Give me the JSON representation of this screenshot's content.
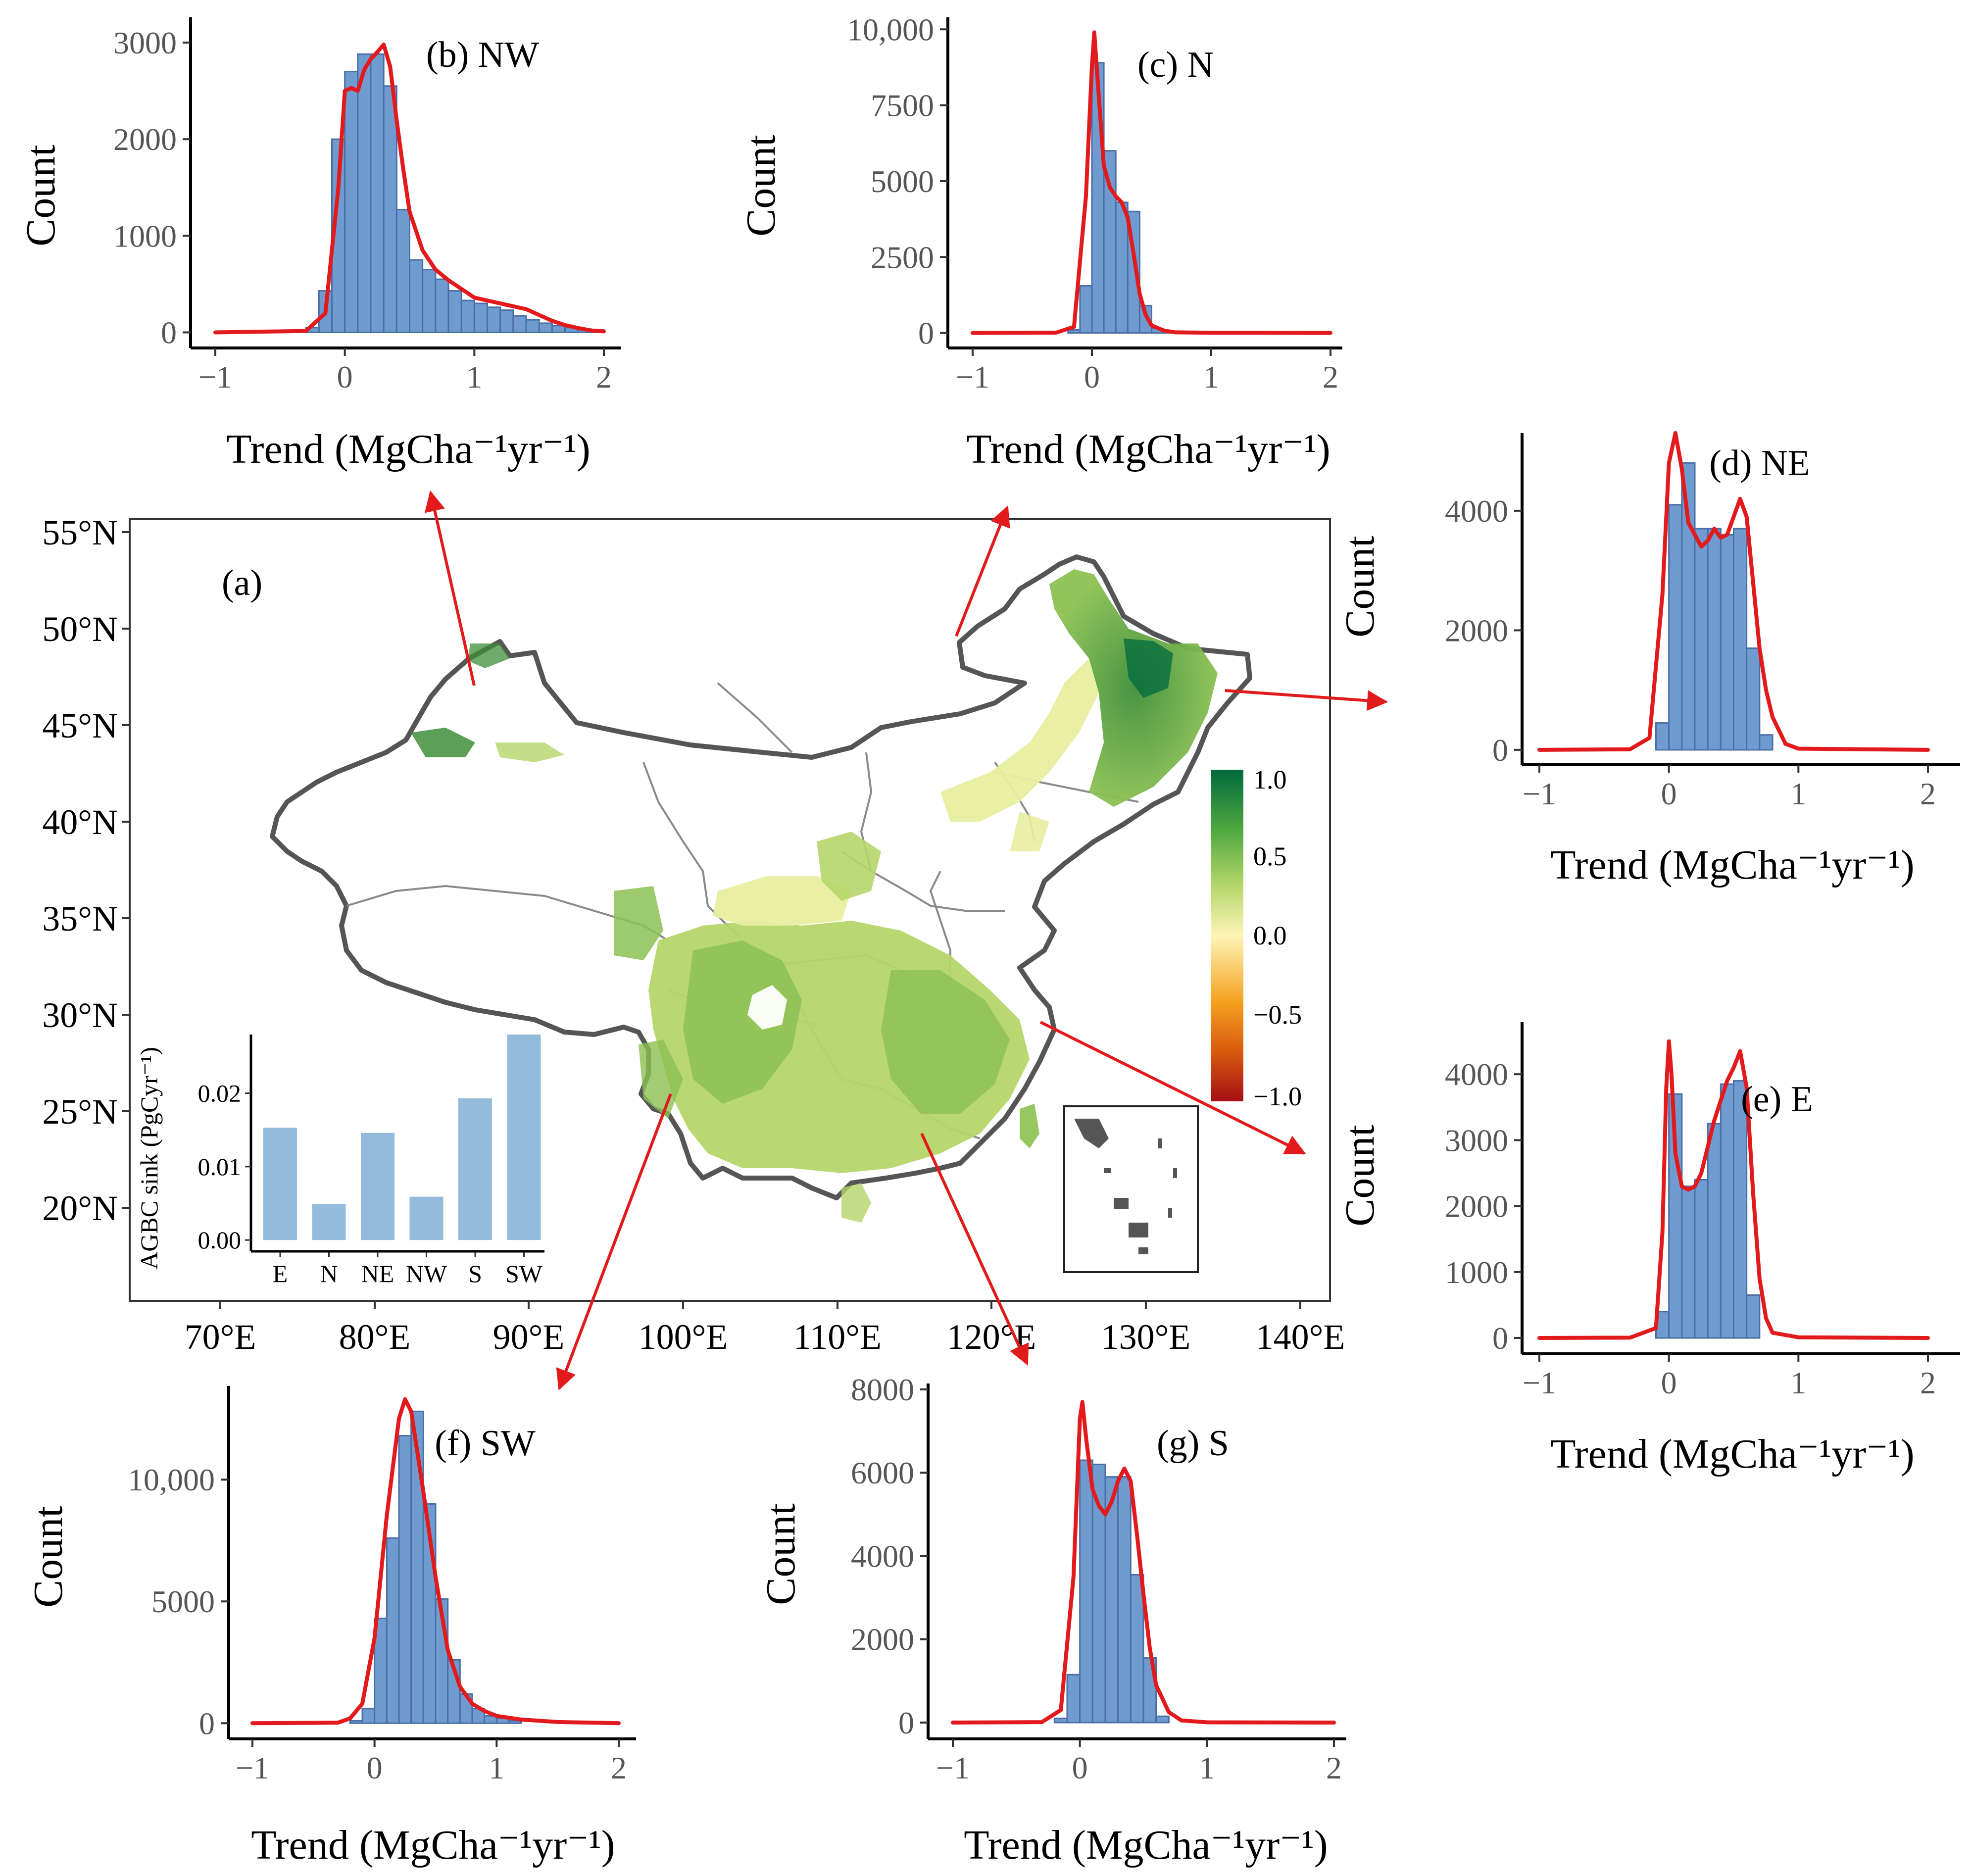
{
  "figure": {
    "common_xlabel": "Trend (MgCha⁻¹yr⁻¹)",
    "common_ylabel": "Count",
    "histogram_color": "#6f9bd1",
    "histogram_edge": "#4a6fa5",
    "density_color": "#e31a1c",
    "arrow_color": "#e31a1c"
  },
  "map": {
    "label": "(a)",
    "lat_ticks": [
      "55°N",
      "50°N",
      "45°N",
      "40°N",
      "35°N",
      "30°N",
      "25°N",
      "20°N"
    ],
    "lon_ticks": [
      "70°E",
      "80°E",
      "90°E",
      "100°E",
      "110°E",
      "120°E",
      "130°E",
      "140°E"
    ],
    "colorbar": {
      "ticks": [
        "1.0",
        "0.5",
        "0.0",
        "−0.5",
        "−1.0"
      ],
      "colors": [
        "#00693c",
        "#4ea83f",
        "#b5d66a",
        "#fdf5b8",
        "#f4a11f",
        "#d85a0e",
        "#a50f15"
      ]
    },
    "land_fill": "#ffffff",
    "vegetation_colors": [
      "#b5d66a",
      "#8cc152",
      "#e8eea0",
      "#3f8f3a"
    ]
  },
  "chart_data": [
    {
      "id": "inset_bar",
      "type": "bar",
      "categories": [
        "E",
        "N",
        "NE",
        "NW",
        "S",
        "SW"
      ],
      "values": [
        0.0153,
        0.0049,
        0.0146,
        0.0059,
        0.0193,
        0.028
      ],
      "ylabel": "AGBC sink (PgCyr⁻¹)",
      "yticks": [
        "0.00",
        "0.01",
        "0.02"
      ],
      "ylim": [
        -0.001,
        0.028
      ],
      "color": "#94bbdc"
    },
    {
      "id": "NW",
      "type": "histogram",
      "title": "(b) NW",
      "xlabel": "Trend (MgCha⁻¹yr⁻¹)",
      "ylabel": "Count",
      "xlim": [
        -1,
        2
      ],
      "ylim": [
        -100,
        3200
      ],
      "xticks": [
        "−1",
        "0",
        "1",
        "2"
      ],
      "xtick_values": [
        -1,
        0,
        1,
        2
      ],
      "yticks": [
        "0",
        "1000",
        "2000",
        "3000"
      ],
      "ytick_values": [
        0,
        1000,
        2000,
        3000
      ],
      "bin_start": -0.3,
      "bin_width": 0.1,
      "counts": [
        50,
        430,
        2000,
        2700,
        2880,
        2880,
        2550,
        1270,
        750,
        650,
        550,
        430,
        330,
        300,
        260,
        230,
        170,
        130,
        95,
        70,
        50,
        35,
        25
      ],
      "density_x": [
        -1,
        -0.3,
        -0.15,
        -0.05,
        0,
        0.05,
        0.1,
        0.15,
        0.2,
        0.25,
        0.3,
        0.35,
        0.4,
        0.45,
        0.5,
        0.6,
        0.7,
        0.8,
        0.9,
        1.0,
        1.1,
        1.2,
        1.3,
        1.4,
        1.5,
        1.6,
        1.7,
        1.8,
        1.9,
        2
      ],
      "density_y": [
        0,
        15,
        200,
        1500,
        2500,
        2530,
        2500,
        2720,
        2830,
        2900,
        2980,
        2750,
        2200,
        1700,
        1250,
        850,
        650,
        540,
        450,
        360,
        330,
        300,
        270,
        240,
        180,
        120,
        75,
        45,
        20,
        10
      ]
    },
    {
      "id": "N",
      "type": "histogram",
      "title": "(c) N",
      "xlabel": "Trend (MgCha⁻¹yr⁻¹)",
      "ylabel": "Count",
      "xlim": [
        -1,
        2
      ],
      "ylim": [
        -300,
        10200
      ],
      "xticks": [
        "−1",
        "0",
        "1",
        "2"
      ],
      "xtick_values": [
        -1,
        0,
        1,
        2
      ],
      "yticks": [
        "0",
        "2500",
        "5000",
        "7500",
        "10,000"
      ],
      "ytick_values": [
        0,
        2500,
        5000,
        7500,
        10000
      ],
      "bin_start": -0.2,
      "bin_width": 0.1,
      "counts": [
        100,
        1550,
        8900,
        6000,
        4300,
        4000,
        900,
        150,
        40
      ],
      "density_x": [
        -1,
        -0.3,
        -0.15,
        -0.05,
        0,
        0.02,
        0.05,
        0.1,
        0.15,
        0.2,
        0.25,
        0.3,
        0.35,
        0.4,
        0.45,
        0.5,
        0.6,
        0.7,
        1.0,
        2
      ],
      "density_y": [
        0,
        10,
        200,
        4500,
        8800,
        9900,
        8200,
        5500,
        4800,
        4500,
        4300,
        3800,
        2600,
        1300,
        600,
        250,
        80,
        20,
        5,
        0
      ]
    },
    {
      "id": "NE",
      "type": "histogram",
      "title": "(d) NE",
      "xlabel": "Trend (MgCha⁻¹yr⁻¹)",
      "ylabel": "Count",
      "xlim": [
        -1,
        2
      ],
      "ylim": [
        -150,
        5200
      ],
      "xticks": [
        "−1",
        "0",
        "1",
        "2"
      ],
      "xtick_values": [
        -1,
        0,
        1,
        2
      ],
      "yticks": [
        "0",
        "2000",
        "4000"
      ],
      "ytick_values": [
        0,
        2000,
        4000
      ],
      "bin_start": -0.1,
      "bin_width": 0.1,
      "counts": [
        450,
        4100,
        4800,
        3700,
        3700,
        3600,
        3700,
        1700,
        250
      ],
      "density_x": [
        -1,
        -0.3,
        -0.15,
        -0.05,
        0,
        0.05,
        0.1,
        0.15,
        0.2,
        0.25,
        0.3,
        0.35,
        0.4,
        0.45,
        0.5,
        0.55,
        0.6,
        0.65,
        0.7,
        0.75,
        0.8,
        0.9,
        1.0,
        2
      ],
      "density_y": [
        0,
        10,
        200,
        2600,
        4800,
        5300,
        4700,
        3800,
        3600,
        3400,
        3500,
        3700,
        3550,
        3600,
        3900,
        4200,
        3900,
        2800,
        1700,
        1000,
        550,
        100,
        20,
        0
      ]
    },
    {
      "id": "E",
      "type": "histogram",
      "title": "(e) E",
      "xlabel": "Trend (MgCha⁻¹yr⁻¹)",
      "ylabel": "Count",
      "xlim": [
        -1,
        2
      ],
      "ylim": [
        -150,
        4700
      ],
      "xticks": [
        "−1",
        "0",
        "1",
        "2"
      ],
      "xtick_values": [
        -1,
        0,
        1,
        2
      ],
      "yticks": [
        "0",
        "1000",
        "2000",
        "3000",
        "4000"
      ],
      "ytick_values": [
        0,
        1000,
        2000,
        3000,
        4000
      ],
      "bin_start": -0.1,
      "bin_width": 0.1,
      "counts": [
        400,
        3700,
        2300,
        2400,
        3250,
        3850,
        3900,
        650
      ],
      "density_x": [
        -1,
        -0.3,
        -0.1,
        -0.05,
        -0.02,
        0,
        0.02,
        0.05,
        0.1,
        0.15,
        0.2,
        0.25,
        0.3,
        0.35,
        0.4,
        0.45,
        0.5,
        0.55,
        0.6,
        0.65,
        0.7,
        0.75,
        0.8,
        1.0,
        2
      ],
      "density_y": [
        0,
        5,
        150,
        1600,
        3800,
        4500,
        4000,
        2800,
        2300,
        2250,
        2300,
        2500,
        2900,
        3300,
        3600,
        3900,
        4100,
        4350,
        3800,
        2200,
        900,
        300,
        80,
        10,
        0
      ]
    },
    {
      "id": "SW",
      "type": "histogram",
      "title": "(f) SW",
      "xlabel": "Trend (MgCha⁻¹yr⁻¹)",
      "ylabel": "Count",
      "xlim": [
        -1,
        2
      ],
      "ylim": [
        -400,
        13600
      ],
      "xticks": [
        "−1",
        "0",
        "1",
        "2"
      ],
      "xtick_values": [
        -1,
        0,
        1,
        2
      ],
      "yticks": [
        "0",
        "5000",
        "10,000"
      ],
      "ytick_values": [
        0,
        5000,
        10000
      ],
      "bin_start": -0.2,
      "bin_width": 0.1,
      "counts": [
        100,
        600,
        4300,
        7600,
        11800,
        12800,
        9000,
        5100,
        2600,
        1200,
        600,
        300,
        200,
        100
      ],
      "density_x": [
        -1,
        -0.3,
        -0.2,
        -0.1,
        0,
        0.1,
        0.2,
        0.25,
        0.3,
        0.4,
        0.5,
        0.6,
        0.7,
        0.8,
        0.9,
        1.0,
        1.2,
        1.5,
        2
      ],
      "density_y": [
        0,
        20,
        200,
        800,
        3500,
        8500,
        12500,
        13300,
        12800,
        9500,
        6000,
        3000,
        1500,
        800,
        500,
        300,
        150,
        50,
        0
      ]
    },
    {
      "id": "S",
      "type": "histogram",
      "title": "(g) S",
      "xlabel": "Trend (MgCha⁻¹yr⁻¹)",
      "ylabel": "Count",
      "xlim": [
        -1,
        2
      ],
      "ylim": [
        -250,
        8000
      ],
      "xticks": [
        "−1",
        "0",
        "1",
        "2"
      ],
      "xtick_values": [
        -1,
        0,
        1,
        2
      ],
      "yticks": [
        "0",
        "2000",
        "4000",
        "6000",
        "8000"
      ],
      "ytick_values": [
        0,
        2000,
        4000,
        6000,
        8000
      ],
      "bin_start": -0.2,
      "bin_width": 0.1,
      "counts": [
        100,
        1150,
        6300,
        6200,
        5900,
        5900,
        3550,
        1550,
        150
      ],
      "density_x": [
        -1,
        -0.3,
        -0.15,
        -0.05,
        0,
        0.02,
        0.05,
        0.1,
        0.15,
        0.2,
        0.25,
        0.3,
        0.35,
        0.4,
        0.45,
        0.5,
        0.55,
        0.6,
        0.7,
        0.8,
        1.0,
        2
      ],
      "density_y": [
        0,
        10,
        300,
        3500,
        7300,
        7700,
        6800,
        5600,
        5200,
        5000,
        5300,
        5800,
        6100,
        5800,
        4500,
        3100,
        1800,
        900,
        250,
        50,
        5,
        0
      ]
    }
  ]
}
